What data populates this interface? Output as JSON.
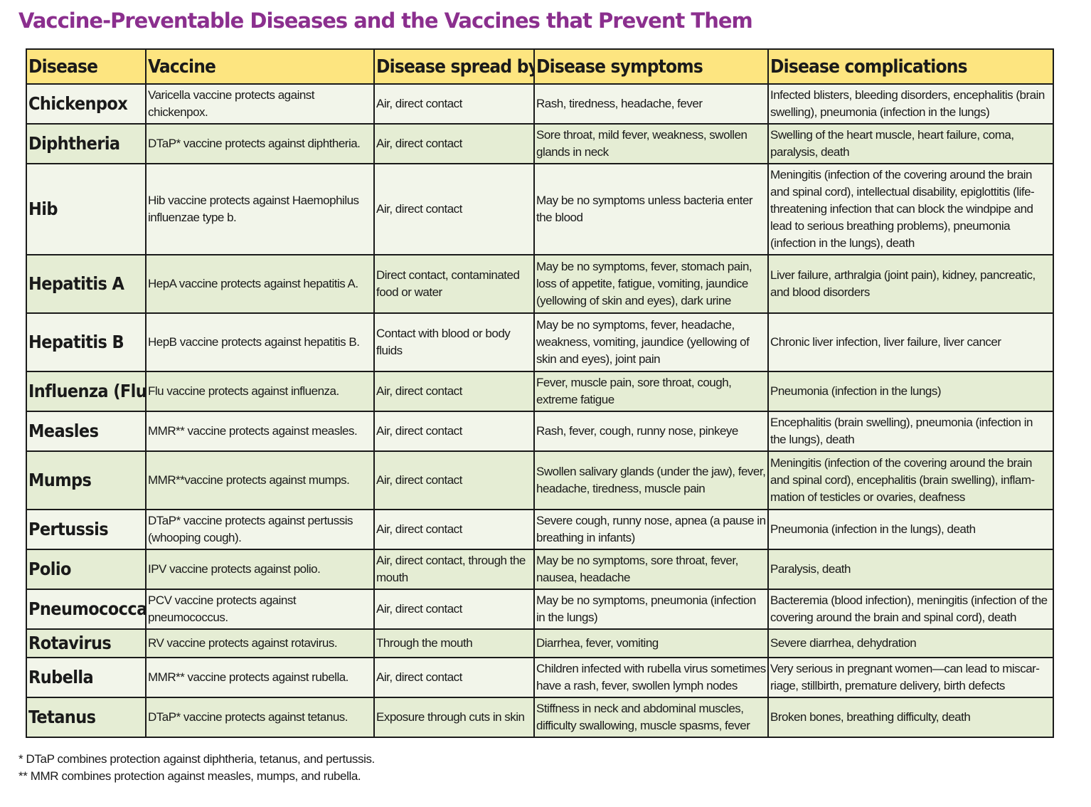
{
  "title": "Vaccine-Preventable Diseases and the Vaccines that Prevent Them",
  "headers": [
    "Disease",
    "Vaccine",
    "Disease spread by",
    "Disease  symptoms",
    "Disease  complications"
  ],
  "rows": [
    {
      "disease": "Chickenpox",
      "vaccine": "Varicella vaccine protects against chickenpox.",
      "spread": "Air, direct contact",
      "symptoms": "Rash, tiredness, headache,  fever",
      "complications": "Infected blisters, bleeding disorders, encephalitis (brain swelling), pneumonia (infection in the lungs)"
    },
    {
      "disease": "Diphtheria",
      "vaccine": "DTaP* vaccine protects against diphtheria.",
      "spread": "Air, direct contact",
      "symptoms": "Sore throat, mild fever, weakness, swollen glands in neck",
      "complications": "Swelling of the heart muscle, heart failure, coma, paralysis, death"
    },
    {
      "disease": "Hib",
      "vaccine": "Hib vaccine protects against Haemophilus influenzae type b.",
      "spread": "Air, direct contact",
      "symptoms": "May be no symptoms unless bacteria enter the blood",
      "complications": "Meningitis (infection of the covering around the brain and spinal cord), intellectual disability, epiglottitis (life-threatening infection that can block the windpipe and lead to serious breathing problems), pneumonia (infection in the lungs), death"
    },
    {
      "disease": "Hepatitis A",
      "vaccine": "HepA vaccine protects against hepatitis A.",
      "spread": "Direct contact, contaminated food or water",
      "symptoms": "May be no symptoms, fever, stomach pain, loss of appetite, fatigue, vomiting, jaundice (yellowing of skin and eyes), dark urine",
      "complications": "Liver failure, arthralgia (joint pain), kidney, pancreatic, and blood disorders"
    },
    {
      "disease": "Hepatitis B",
      "vaccine": "HepB vaccine protects against hepatitis B.",
      "spread": "Contact with blood or body fluids",
      "symptoms": "May be no symptoms, fever, headache, weakness, vomiting, jaundice (yellowing of skin and eyes), joint pain",
      "complications": "Chronic liver infection, liver failure, liver cancer"
    },
    {
      "disease": "Influenza (Flu)",
      "vaccine": "Flu vaccine protects against influenza.",
      "spread": "Air, direct contact",
      "symptoms": "Fever, muscle pain, sore throat, cough, extreme fatigue",
      "complications": "Pneumonia (infection in the lungs)"
    },
    {
      "disease": "Measles",
      "vaccine": "MMR** vaccine protects against measles.",
      "spread": "Air, direct contact",
      "symptoms": "Rash, fever, cough, runny nose, pinkeye",
      "complications": "Encephalitis (brain swelling), pneumonia (infection in the lungs), death"
    },
    {
      "disease": "Mumps",
      "vaccine": "MMR**vaccine protects against mumps.",
      "spread": "Air, direct contact",
      "symptoms": "Swollen salivary glands (under the jaw), fever, headache, tiredness, muscle pain",
      "complications": "Meningitis (infection of the covering around the brain and spinal cord), encephalitis (brain swelling), inflam-mation of testicles or ovaries, deafness"
    },
    {
      "disease": "Pertussis",
      "vaccine": "DTaP* vaccine protects against pertussis (whooping cough).",
      "spread": "Air, direct contact",
      "symptoms": "Severe cough, runny nose, apnea (a pause in breathing in infants)",
      "complications": "Pneumonia (infection in the lungs), death"
    },
    {
      "disease": "Polio",
      "vaccine": "IPV vaccine protects against polio.",
      "spread": "Air, direct contact, through the mouth",
      "symptoms": "May be no symptoms, sore throat, fever, nausea, headache",
      "complications": "Paralysis,  death"
    },
    {
      "disease": "Pneumococcal",
      "vaccine": "PCV vaccine protects against  pneumococcus.",
      "spread": "Air, direct contact",
      "symptoms": "May be no symptoms, pneumonia (infection in the lungs)",
      "complications": "Bacteremia (blood infection), meningitis (infection of the covering around the brain and spinal cord), death"
    },
    {
      "disease": "Rotavirus",
      "vaccine": "RV vaccine protects against rotavirus.",
      "spread": "Through the mouth",
      "symptoms": "Diarrhea, fever, vomiting",
      "complications": "Severe diarrhea, dehydration"
    },
    {
      "disease": "Rubella",
      "vaccine": "MMR** vaccine protects against rubella.",
      "spread": "Air, direct contact",
      "symptoms": "Children infected with rubella virus sometimes have a rash, fever, swollen lymph nodes",
      "complications": "Very serious in pregnant women—can lead to miscar-riage, stillbirth, premature delivery, birth  defects"
    },
    {
      "disease": "Tetanus",
      "vaccine": "DTaP* vaccine protects against tetanus.",
      "spread": "Exposure through cuts in skin",
      "symptoms": "Stiffness in neck and abdominal muscles, difficulty swallowing,  muscle spasms, fever",
      "complications": "Broken bones, breathing difficulty, death"
    }
  ],
  "footnotes": [
    "* DTaP combines protection against diphtheria, tetanus, and pertussis.",
    "** MMR combines protection against measles, mumps, and rubella."
  ]
}
